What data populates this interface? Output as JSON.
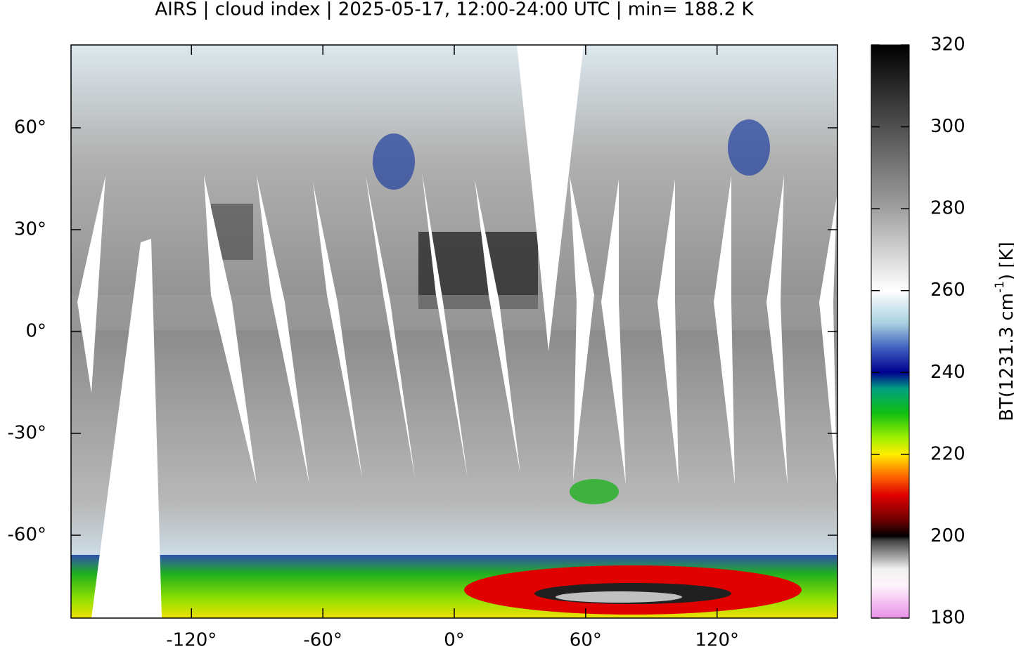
{
  "title": "AIRS | cloud index | 2025-05-17, 12:00-24:00 UTC | min= 188.2 K",
  "map": {
    "xlim": [
      -175,
      175
    ],
    "ylim": [
      -84.4,
      84.4
    ],
    "xticks": [
      {
        "value": -120,
        "label": "-120°"
      },
      {
        "value": -60,
        "label": "-60°"
      },
      {
        "value": 0,
        "label": "0°"
      },
      {
        "value": 60,
        "label": "60°"
      },
      {
        "value": 120,
        "label": "120°"
      }
    ],
    "yticks": [
      {
        "value": -60,
        "label": "-60°"
      },
      {
        "value": -30,
        "label": "-30°"
      },
      {
        "value": 0,
        "label": "0°"
      },
      {
        "value": 30,
        "label": "30°"
      },
      {
        "value": 60,
        "label": "60°"
      }
    ]
  },
  "colorbar": {
    "lim": [
      180,
      320
    ],
    "ticks": [
      180,
      200,
      220,
      240,
      260,
      280,
      300,
      320
    ],
    "label": {
      "text": "BT(1231.3 cm",
      "superscript": "-1",
      "suffix": ") [K]"
    },
    "colors": [
      {
        "value": 180,
        "color": "#e890e8"
      },
      {
        "value": 188,
        "color": "#fff4fb"
      },
      {
        "value": 192,
        "color": "#f0f0f0"
      },
      {
        "value": 199,
        "color": "#404040"
      },
      {
        "value": 200,
        "color": "#000000"
      },
      {
        "value": 204,
        "color": "#700000"
      },
      {
        "value": 210,
        "color": "#e00000"
      },
      {
        "value": 215,
        "color": "#ff7000"
      },
      {
        "value": 220,
        "color": "#ffee00"
      },
      {
        "value": 224,
        "color": "#a0f000"
      },
      {
        "value": 230,
        "color": "#10c010"
      },
      {
        "value": 236,
        "color": "#00a080"
      },
      {
        "value": 240,
        "color": "#000090"
      },
      {
        "value": 246,
        "color": "#4060c0"
      },
      {
        "value": 252,
        "color": "#a8d0e0"
      },
      {
        "value": 260,
        "color": "#ffffff"
      },
      {
        "value": 280,
        "color": "#a0a0a0"
      },
      {
        "value": 300,
        "color": "#505050"
      },
      {
        "value": 320,
        "color": "#000000"
      }
    ]
  }
}
